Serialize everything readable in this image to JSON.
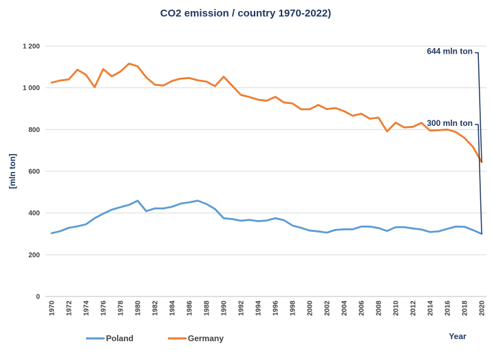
{
  "chart_data": {
    "type": "line",
    "title": "CO2 emission / country 1970-2022)",
    "xlabel": "Year",
    "ylabel": "[mln ton]",
    "ylim": [
      0,
      1200
    ],
    "yticks": [
      0,
      200,
      400,
      600,
      800,
      1000,
      1200
    ],
    "ytick_labels": [
      "0",
      "200",
      "400",
      "600",
      "800",
      "1 000",
      "1 200"
    ],
    "x": [
      1970,
      1971,
      1972,
      1973,
      1974,
      1975,
      1976,
      1977,
      1978,
      1979,
      1980,
      1981,
      1982,
      1983,
      1984,
      1985,
      1986,
      1987,
      1988,
      1989,
      1990,
      1991,
      1992,
      1993,
      1994,
      1995,
      1996,
      1997,
      1998,
      1999,
      2000,
      2001,
      2002,
      2003,
      2004,
      2005,
      2006,
      2007,
      2008,
      2009,
      2010,
      2011,
      2012,
      2013,
      2014,
      2015,
      2016,
      2017,
      2018,
      2019,
      2020
    ],
    "xtick_labels": [
      "1970",
      "1972",
      "1974",
      "1976",
      "1978",
      "1980",
      "1982",
      "1984",
      "1986",
      "1988",
      "1990",
      "1992",
      "1994",
      "1996",
      "1998",
      "2000",
      "2002",
      "2004",
      "2006",
      "2008",
      "2010",
      "2012",
      "2014",
      "2016",
      "2018",
      "2020"
    ],
    "grid": "horizontal",
    "legend_position": "bottom-left",
    "series": [
      {
        "name": "Poland",
        "color": "#5b9bd5",
        "values": [
          303,
          313,
          329,
          336,
          346,
          375,
          397,
          416,
          428,
          439,
          459,
          409,
          422,
          422,
          430,
          445,
          451,
          459,
          443,
          419,
          375,
          371,
          363,
          367,
          361,
          364,
          375,
          366,
          340,
          329,
          316,
          312,
          306,
          319,
          322,
          322,
          335,
          335,
          328,
          314,
          332,
          332,
          326,
          321,
          309,
          312,
          324,
          335,
          334,
          318,
          300
        ]
      },
      {
        "name": "Germany",
        "color": "#ed7d31",
        "values": [
          1025,
          1035,
          1040,
          1087,
          1062,
          1003,
          1090,
          1055,
          1078,
          1116,
          1103,
          1050,
          1015,
          1011,
          1033,
          1044,
          1047,
          1036,
          1030,
          1008,
          1053,
          1010,
          966,
          956,
          943,
          938,
          957,
          930,
          925,
          897,
          897,
          918,
          898,
          903,
          888,
          866,
          876,
          852,
          857,
          791,
          833,
          810,
          813,
          832,
          795,
          797,
          800,
          788,
          760,
          716,
          644
        ]
      }
    ],
    "annotations": [
      {
        "text": "644 mln ton",
        "series": "Germany",
        "x": 2020,
        "y": 644
      },
      {
        "text": "300 mln ton",
        "series": "Poland",
        "x": 2020,
        "y": 300
      }
    ],
    "colors": {
      "title": "#1f3864",
      "axis_label": "#1f3864",
      "annotation": "#1f3864",
      "gridline": "#d9d9d9",
      "axis": "#bfbfbf"
    }
  }
}
